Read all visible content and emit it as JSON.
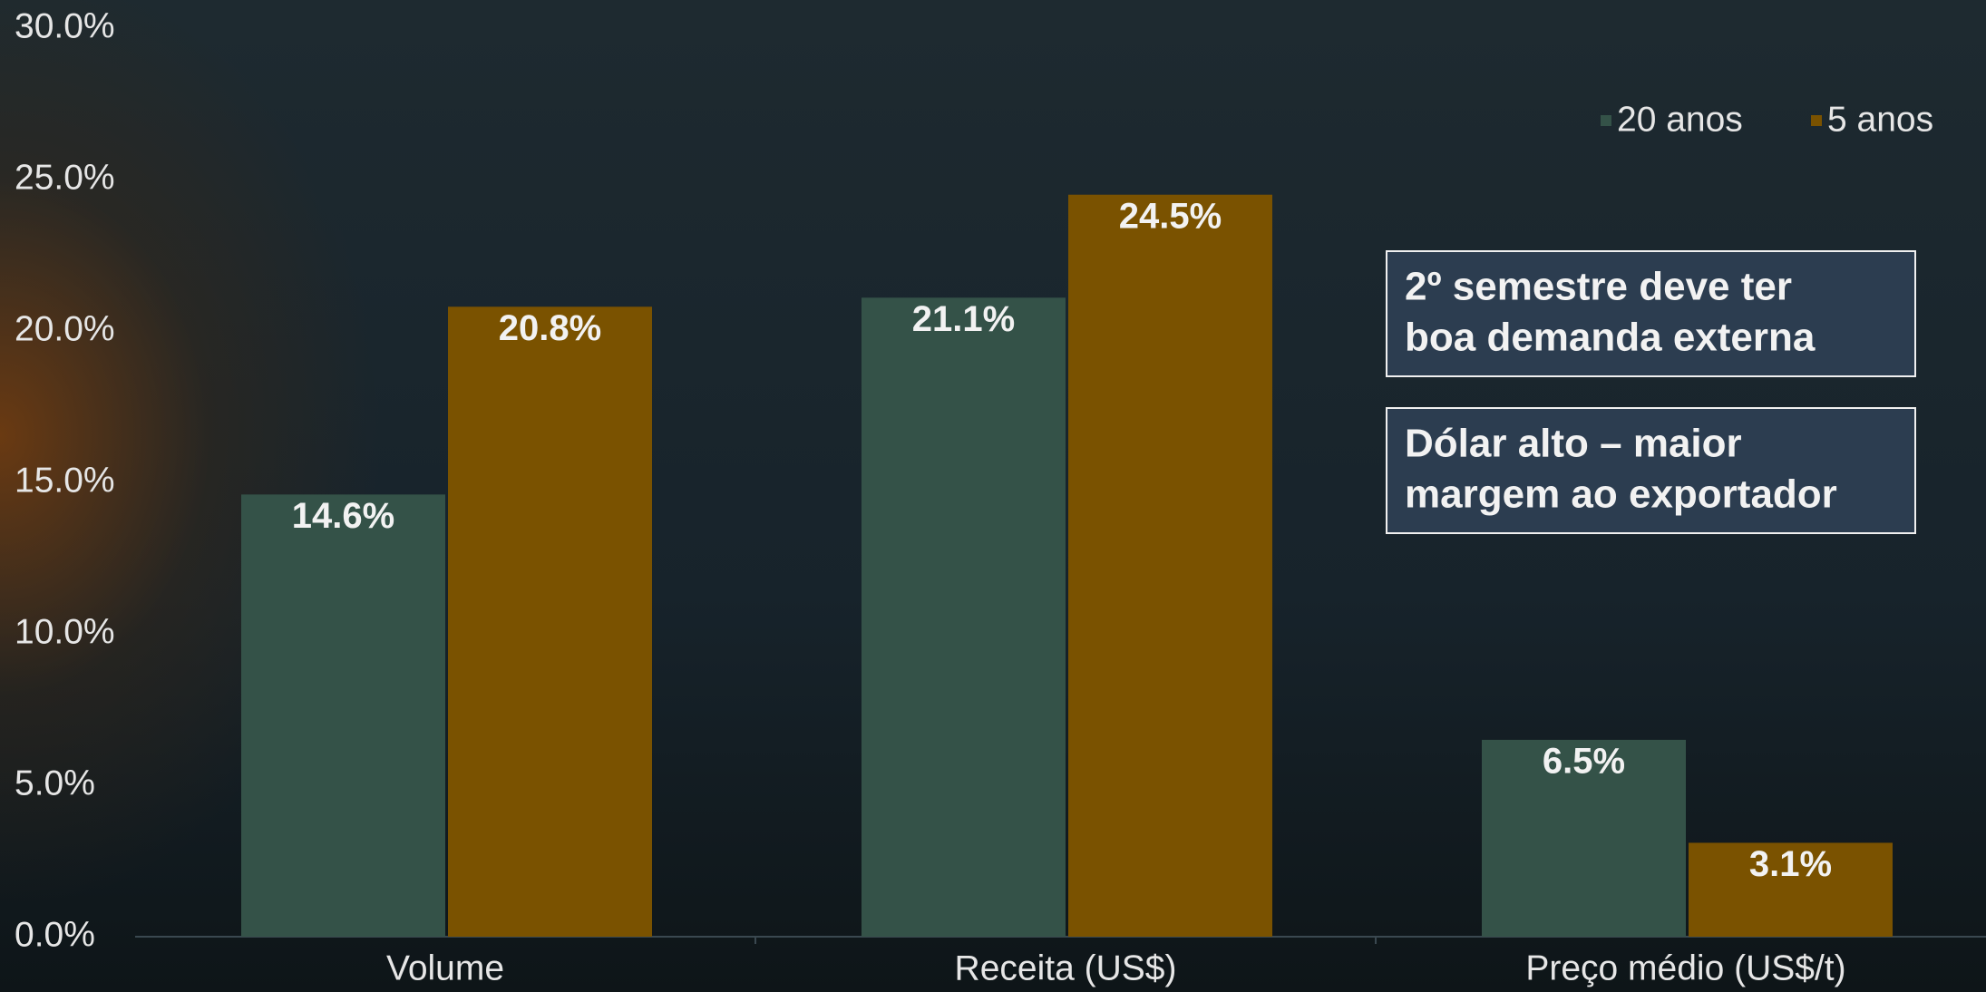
{
  "chart_data": {
    "type": "bar",
    "categories": [
      "Volume",
      "Receita (US$)",
      "Preço médio (US$/t)"
    ],
    "series": [
      {
        "name": "20 anos",
        "color": "#345248",
        "values": [
          14.6,
          21.1,
          6.5
        ],
        "value_labels": [
          "14.6%",
          "21.1%",
          "6.5%"
        ]
      },
      {
        "name": "5 anos",
        "color": "#7a5200",
        "values": [
          20.8,
          24.5,
          3.1
        ],
        "value_labels": [
          "20.8%",
          "24.5%",
          "3.1%"
        ]
      }
    ],
    "ylim": [
      0,
      30
    ],
    "yticks": [
      {
        "value": 0,
        "label": "0.0%"
      },
      {
        "value": 5,
        "label": "5.0%"
      },
      {
        "value": 10,
        "label": "10.0%"
      },
      {
        "value": 15,
        "label": "15.0%"
      },
      {
        "value": 20,
        "label": "20.0%"
      },
      {
        "value": 25,
        "label": "25.0%"
      },
      {
        "value": 30,
        "label": "30.0%"
      }
    ],
    "grid": false,
    "legend": "top-right",
    "annotations": [
      {
        "lines": [
          "2º semestre deve ter",
          "boa demanda externa"
        ]
      },
      {
        "lines": [
          "Dólar alto – maior",
          "margem ao exportador"
        ]
      }
    ]
  }
}
